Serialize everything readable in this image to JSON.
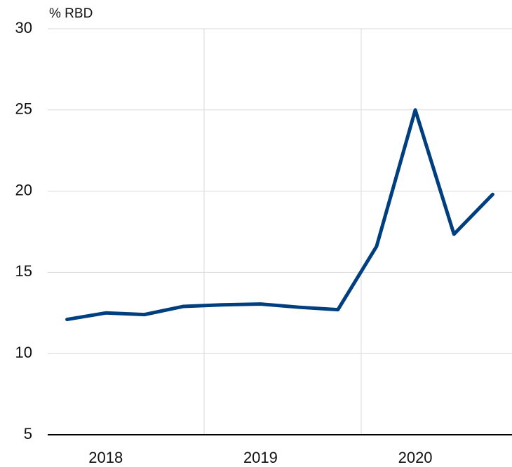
{
  "chart_data": {
    "type": "line",
    "y_label": "% RBD",
    "categories": [
      null,
      "2018",
      null,
      null,
      null,
      "2019",
      null,
      null,
      null,
      "2020",
      null,
      null
    ],
    "series": [
      {
        "name": null,
        "color": "#003f7f",
        "values": [
          12.1,
          12.5,
          12.4,
          12.9,
          13.0,
          13.05,
          12.85,
          12.7,
          16.6,
          25.0,
          17.35,
          19.8
        ]
      }
    ],
    "ylim": [
      5,
      30
    ],
    "yticks": [
      5,
      10,
      15,
      20,
      25,
      30
    ],
    "grid": true
  }
}
